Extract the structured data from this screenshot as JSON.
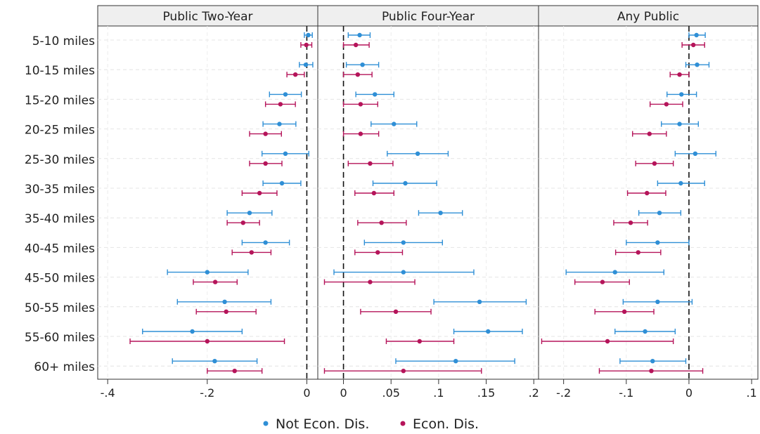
{
  "chart_data": {
    "type": "scatter",
    "variant": "coefficient-plot-with-error-bars",
    "grid": true,
    "legend_position": "bottom-center",
    "categories": [
      "5-10 miles",
      "10-15 miles",
      "15-20 miles",
      "20-25 miles",
      "25-30 miles",
      "30-35 miles",
      "35-40 miles",
      "40-45 miles",
      "45-50 miles",
      "50-55 miles",
      "55-60 miles",
      "60+ miles"
    ],
    "series": [
      {
        "name": "Not Econ. Dis.",
        "color": "#2f8fd6"
      },
      {
        "name": "Econ. Dis.",
        "color": "#b5145a"
      }
    ],
    "panels": [
      {
        "title": "Public Two-Year",
        "xlim": [
          -0.42,
          0.022
        ],
        "ticks": [
          -0.4,
          -0.2,
          0
        ],
        "tick_labels": [
          "-.4",
          "-.2",
          "0"
        ],
        "series_data": [
          [
            [
              0.003,
              -0.005,
              0.011
            ],
            [
              -0.002,
              -0.015,
              0.012
            ],
            [
              -0.043,
              -0.075,
              -0.011
            ],
            [
              -0.055,
              -0.088,
              -0.022
            ],
            [
              -0.043,
              -0.09,
              0.004
            ],
            [
              -0.05,
              -0.088,
              -0.012
            ],
            [
              -0.115,
              -0.16,
              -0.07
            ],
            [
              -0.083,
              -0.13,
              -0.035
            ],
            [
              -0.2,
              -0.28,
              -0.118
            ],
            [
              -0.165,
              -0.26,
              -0.072
            ],
            [
              -0.23,
              -0.33,
              -0.13
            ],
            [
              -0.185,
              -0.27,
              -0.1
            ]
          ],
          [
            [
              -0.001,
              -0.012,
              0.01
            ],
            [
              -0.023,
              -0.04,
              -0.005
            ],
            [
              -0.053,
              -0.083,
              -0.023
            ],
            [
              -0.083,
              -0.115,
              -0.051
            ],
            [
              -0.083,
              -0.115,
              -0.05
            ],
            [
              -0.095,
              -0.13,
              -0.06
            ],
            [
              -0.128,
              -0.16,
              -0.095
            ],
            [
              -0.111,
              -0.15,
              -0.072
            ],
            [
              -0.184,
              -0.228,
              -0.14
            ],
            [
              -0.162,
              -0.222,
              -0.102
            ],
            [
              -0.2,
              -0.355,
              -0.045
            ],
            [
              -0.145,
              -0.2,
              -0.09
            ]
          ]
        ]
      },
      {
        "title": "Public Four-Year",
        "xlim": [
          -0.027,
          0.205
        ],
        "ticks": [
          0,
          0.05,
          0.1,
          0.15,
          0.2
        ],
        "tick_labels": [
          "0",
          ".05",
          ".1",
          ".15",
          ".2"
        ],
        "series_data": [
          [
            [
              0.017,
              0.005,
              0.028
            ],
            [
              0.02,
              0.003,
              0.037
            ],
            [
              0.033,
              0.013,
              0.053
            ],
            [
              0.053,
              0.029,
              0.077
            ],
            [
              0.078,
              0.046,
              0.11
            ],
            [
              0.065,
              0.031,
              0.098
            ],
            [
              0.102,
              0.079,
              0.125
            ],
            [
              0.063,
              0.022,
              0.104
            ],
            [
              0.063,
              -0.01,
              0.137
            ],
            [
              0.143,
              0.095,
              0.192
            ],
            [
              0.152,
              0.116,
              0.188
            ],
            [
              0.118,
              0.055,
              0.18
            ]
          ],
          [
            [
              0.013,
              0,
              0.027
            ],
            [
              0.015,
              0,
              0.03
            ],
            [
              0.018,
              0,
              0.036
            ],
            [
              0.018,
              0,
              0.037
            ],
            [
              0.028,
              0.005,
              0.052
            ],
            [
              0.032,
              0.012,
              0.053
            ],
            [
              0.04,
              0.015,
              0.066
            ],
            [
              0.036,
              0.012,
              0.062
            ],
            [
              0.028,
              -0.02,
              0.075
            ],
            [
              0.055,
              0.018,
              0.092
            ],
            [
              0.08,
              0.045,
              0.116
            ],
            [
              0.063,
              -0.02,
              0.145
            ]
          ]
        ]
      },
      {
        "title": "Any Public",
        "xlim": [
          -0.24,
          0.11
        ],
        "ticks": [
          -0.2,
          -0.1,
          0,
          0.1
        ],
        "tick_labels": [
          "-.2",
          "-.1",
          "0",
          ".1"
        ],
        "series_data": [
          [
            [
              0.012,
              0,
              0.026
            ],
            [
              0.013,
              -0.005,
              0.032
            ],
            [
              -0.012,
              -0.035,
              0.012
            ],
            [
              -0.015,
              -0.044,
              0.015
            ],
            [
              0.01,
              -0.022,
              0.043
            ],
            [
              -0.013,
              -0.05,
              0.025
            ],
            [
              -0.047,
              -0.08,
              -0.013
            ],
            [
              -0.05,
              -0.1,
              0
            ],
            [
              -0.118,
              -0.196,
              -0.04
            ],
            [
              -0.05,
              -0.105,
              0.005
            ],
            [
              -0.07,
              -0.118,
              -0.022
            ],
            [
              -0.058,
              -0.11,
              -0.005
            ]
          ],
          [
            [
              0.007,
              -0.011,
              0.025
            ],
            [
              -0.015,
              -0.03,
              0
            ],
            [
              -0.036,
              -0.062,
              -0.01
            ],
            [
              -0.063,
              -0.09,
              -0.036
            ],
            [
              -0.055,
              -0.085,
              -0.025
            ],
            [
              -0.067,
              -0.098,
              -0.037
            ],
            [
              -0.093,
              -0.12,
              -0.066
            ],
            [
              -0.081,
              -0.117,
              -0.045
            ],
            [
              -0.138,
              -0.182,
              -0.095
            ],
            [
              -0.103,
              -0.15,
              -0.056
            ],
            [
              -0.13,
              -0.235,
              -0.025
            ],
            [
              -0.06,
              -0.143,
              0.022
            ]
          ]
        ]
      }
    ]
  }
}
